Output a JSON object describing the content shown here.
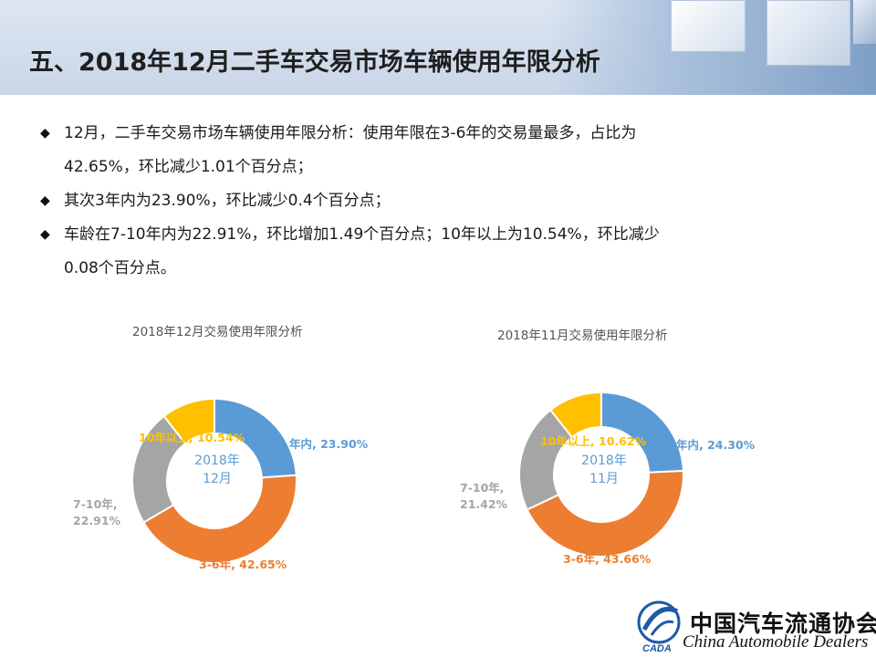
{
  "title": "五、2018年12月二手车交易市场车辆使用年限分析",
  "bullets": [
    "12月，二手车交易市场车辆使用年限分析：使用年限在3-6年的交易量最多，占比为",
    "42.65%，环比减少1.01个百分点；",
    "其次3年内为23.90%，环比减少0.4个百分点；",
    "车龄在7-10年内为22.91%，环比增加1.49个百分点；10年以上为10.54%，环比减少",
    "0.08个百分点。"
  ],
  "chart_data": [
    {
      "type": "pie",
      "variant": "donut",
      "title": "2018年12月交易使用年限分析",
      "center_label": [
        "2018年",
        "12月"
      ],
      "slices": [
        {
          "label": "年内, 23.90%",
          "value": 23.9,
          "color": "#5b9bd5"
        },
        {
          "label": "3-6年, 42.65%",
          "value": 42.65,
          "color": "#ed7d31"
        },
        {
          "label": "7-10年,",
          "label2": "22.91%",
          "value": 22.91,
          "color": "#a5a5a5"
        },
        {
          "label": "10年以上, 10.54%",
          "value": 10.54,
          "color": "#ffc000"
        }
      ]
    },
    {
      "type": "pie",
      "variant": "donut",
      "title": "2018年11月交易使用年限分析",
      "center_label": [
        "2018年",
        "11月"
      ],
      "slices": [
        {
          "label": "年内, 24.30%",
          "value": 24.3,
          "color": "#5b9bd5"
        },
        {
          "label": "3-6年, 43.66%",
          "value": 43.66,
          "color": "#ed7d31"
        },
        {
          "label": "7-10年,",
          "label2": "21.42%",
          "value": 21.42,
          "color": "#a5a5a5"
        },
        {
          "label": "10年以上, 10.62%",
          "value": 10.62,
          "color": "#ffc000"
        }
      ]
    }
  ],
  "footer": {
    "org_cn": "中国汽车流通协会",
    "org_en": "China Automobile Dealers",
    "logo_text": "CADA"
  }
}
